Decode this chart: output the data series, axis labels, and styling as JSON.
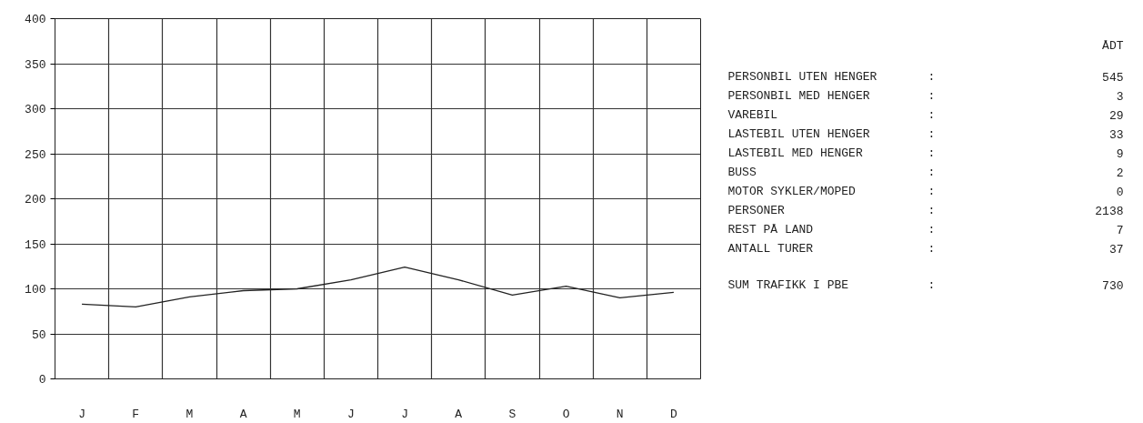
{
  "chart_data": {
    "type": "line",
    "categories": [
      "J",
      "F",
      "M",
      "A",
      "M",
      "J",
      "J",
      "A",
      "S",
      "O",
      "N",
      "D"
    ],
    "series": [
      {
        "color": "#222222",
        "values": [
          83,
          80,
          91,
          98,
          100,
          110,
          124,
          110,
          93,
          103,
          90,
          96
        ]
      }
    ],
    "ylim": [
      0,
      400
    ],
    "yticks": [
      0,
      50,
      100,
      150,
      200,
      250,
      300,
      350,
      400
    ],
    "grid": true,
    "marker": "none",
    "line_style": "solid",
    "annotations": [
      "ÅDT",
      "PERSONBIL UTEN HENGER",
      ":",
      "545",
      "PERSONBIL MED HENGER",
      ":",
      "3",
      "VAREBIL",
      ":",
      "29",
      "LASTEBIL UTEN HENGER",
      ":",
      "33",
      "LASTEBIL MED HENGER",
      ":",
      "9",
      "BUSS",
      ":",
      "2",
      "MOTOR SYKLER/MOPED",
      ":",
      "0",
      "PERSONER",
      ":",
      "2138",
      "REST PÅ LAND",
      ":",
      "7",
      "ANTALL TURER",
      ":",
      "37",
      "SUM TRAFIKK I PBE",
      ":",
      "730"
    ]
  }
}
